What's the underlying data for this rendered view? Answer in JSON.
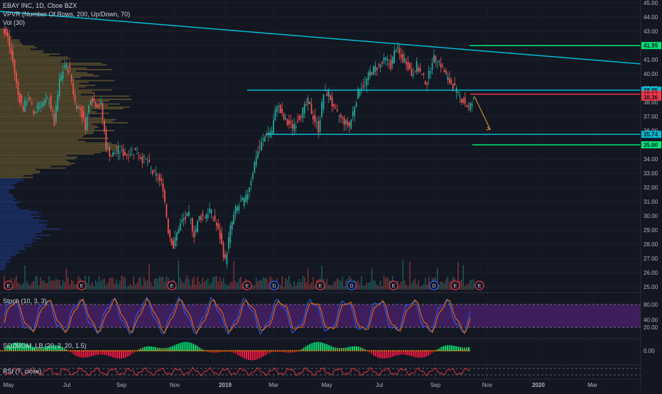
{
  "header": {
    "symbol": "EBAY INC, 1D, Cboe BZX",
    "vpvr": "VPVR (Number Of Rows, 200, Up/Down, 70)",
    "vol": "Vol (30)"
  },
  "panes": {
    "stoch_label": "Stoch (10, 3, 3)",
    "sqzmom_label": "SQZMOM_LB (20, 2, 20, 1.5)",
    "rsi_label": "RSI (7, close)"
  },
  "colors": {
    "background": "#131722",
    "up": "#26a69a",
    "down": "#ef5350",
    "trendline": "#00bcd4",
    "support_green": "#00e676",
    "resistance_red": "#f23645",
    "projection": "#e0a030",
    "stoch_fill": "#3e1f5c",
    "stoch_k": "#2962ff",
    "stoch_d": "#ff6d00"
  },
  "chart_data": {
    "type": "candlestick",
    "y_axis_ticks": [
      "45.00",
      "44.00",
      "43.00",
      "42.00",
      "41.00",
      "40.00",
      "39.00",
      "38.00",
      "37.00",
      "36.00",
      "35.00",
      "34.00",
      "33.00",
      "32.00",
      "31.00",
      "30.00",
      "29.00",
      "28.00",
      "27.00",
      "26.00",
      "25.00"
    ],
    "ylim": [
      24.6,
      45.2
    ],
    "x_axis_ticks": [
      "May",
      "Jul",
      "Sep",
      "Nov",
      "2019",
      "Mar",
      "May",
      "Jul",
      "Sep",
      "Nov",
      "2020",
      "Mar"
    ],
    "price_labels": [
      {
        "text": "41.99",
        "value": 41.99,
        "color": "#00e676"
      },
      {
        "text": "38.85",
        "value": 38.85,
        "color": "#00bcd4"
      },
      {
        "text": "38.57",
        "value": 38.57,
        "color": "#f23645"
      },
      {
        "text": "38.36",
        "value": 38.36,
        "color": "#f23645"
      },
      {
        "text": "35.74",
        "value": 35.74,
        "color": "#00bcd4"
      },
      {
        "text": "35.00",
        "value": 35.0,
        "color": "#00e676"
      }
    ],
    "stoch_axis_ticks": [
      "80.00",
      "40.00",
      "20.00"
    ],
    "sqzmom_axis_ticks": [
      "0.00"
    ],
    "event_markers": [
      "E",
      "E",
      "E",
      "E",
      "D",
      "E",
      "D",
      "E",
      "D",
      "E",
      "E"
    ],
    "close_series": [
      42.5,
      40.8,
      38.5,
      37.6,
      38.4,
      37.2,
      38.0,
      37.9,
      38.2,
      36.5,
      39.5,
      40.6,
      40.2,
      38.0,
      37.5,
      36.3,
      38.4,
      37.9,
      37.8,
      34.9,
      34.2,
      34.6,
      34.5,
      34.3,
      34.6,
      34.5,
      34.0,
      33.8,
      33.0,
      32.7,
      32.0,
      29.0,
      27.8,
      29.2,
      29.8,
      30.0,
      28.7,
      29.9,
      30.0,
      30.4,
      29.7,
      28.5,
      26.8,
      29.1,
      30.4,
      30.9,
      31.2,
      32.6,
      34.3,
      35.1,
      35.8,
      36.0,
      37.9,
      37.0,
      36.5,
      36.3,
      36.8,
      37.4,
      38.0,
      37.0,
      36.1,
      38.6,
      38.7,
      37.4,
      37.0,
      36.6,
      36.3,
      37.8,
      39.1,
      39.3,
      40.1,
      40.4,
      40.6,
      41.0,
      40.6,
      41.9,
      41.1,
      40.9,
      40.0,
      40.6,
      39.8,
      39.4,
      41.0,
      41.1,
      40.4,
      39.6,
      39.2,
      38.5,
      38.1,
      37.6,
      38.1
    ]
  }
}
